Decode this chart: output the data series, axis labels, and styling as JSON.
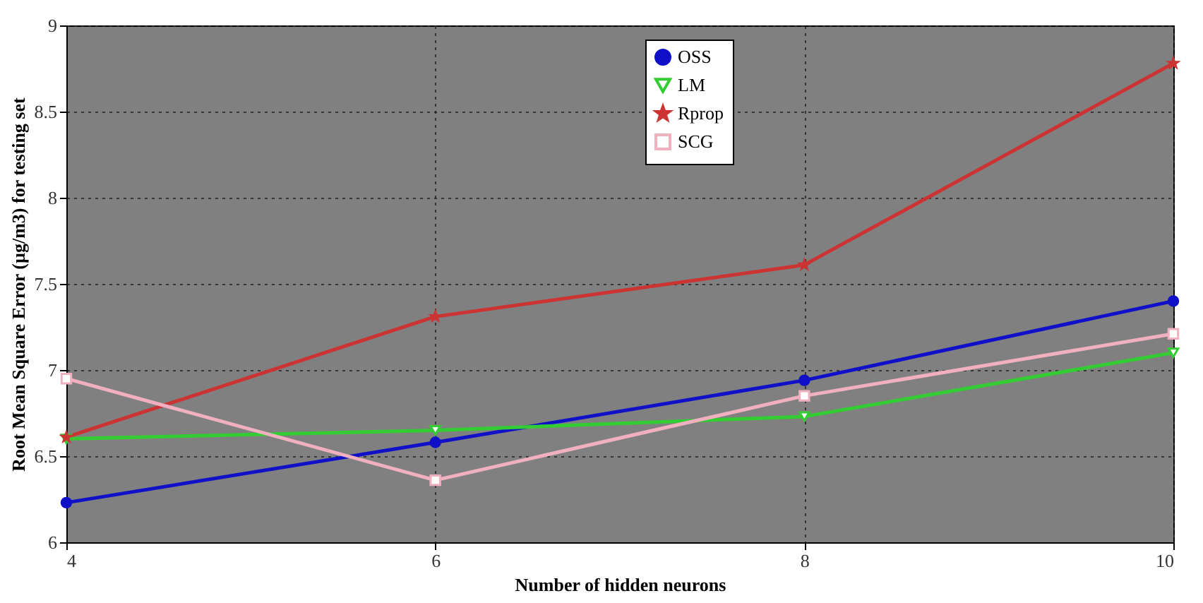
{
  "chart_data": {
    "type": "line",
    "xlabel": "Number of hidden neurons",
    "ylabel": "Root Mean Square Error (µg/m3) for testing set",
    "x": [
      4,
      6,
      8,
      10
    ],
    "series": [
      {
        "name": "OSS",
        "color": "#1010c8",
        "marker": "circle",
        "values": [
          6.23,
          6.58,
          6.94,
          7.4
        ]
      },
      {
        "name": "LM",
        "color": "#33cc33",
        "marker": "triangle",
        "values": [
          6.6,
          6.65,
          6.73,
          7.1
        ]
      },
      {
        "name": "Rprop",
        "color": "#cc3333",
        "marker": "star",
        "values": [
          6.61,
          7.31,
          7.61,
          8.78
        ]
      },
      {
        "name": "SCG",
        "color": "#f0b0c0",
        "marker": "square",
        "values": [
          6.95,
          6.36,
          6.85,
          7.21
        ]
      }
    ],
    "xlim": [
      4,
      10
    ],
    "xticks": [
      4,
      6,
      8,
      10
    ],
    "ylim": [
      6,
      9
    ],
    "yticks": [
      6,
      6.5,
      7,
      7.5,
      8,
      8.5,
      9
    ],
    "grid": true,
    "legend": "top"
  }
}
